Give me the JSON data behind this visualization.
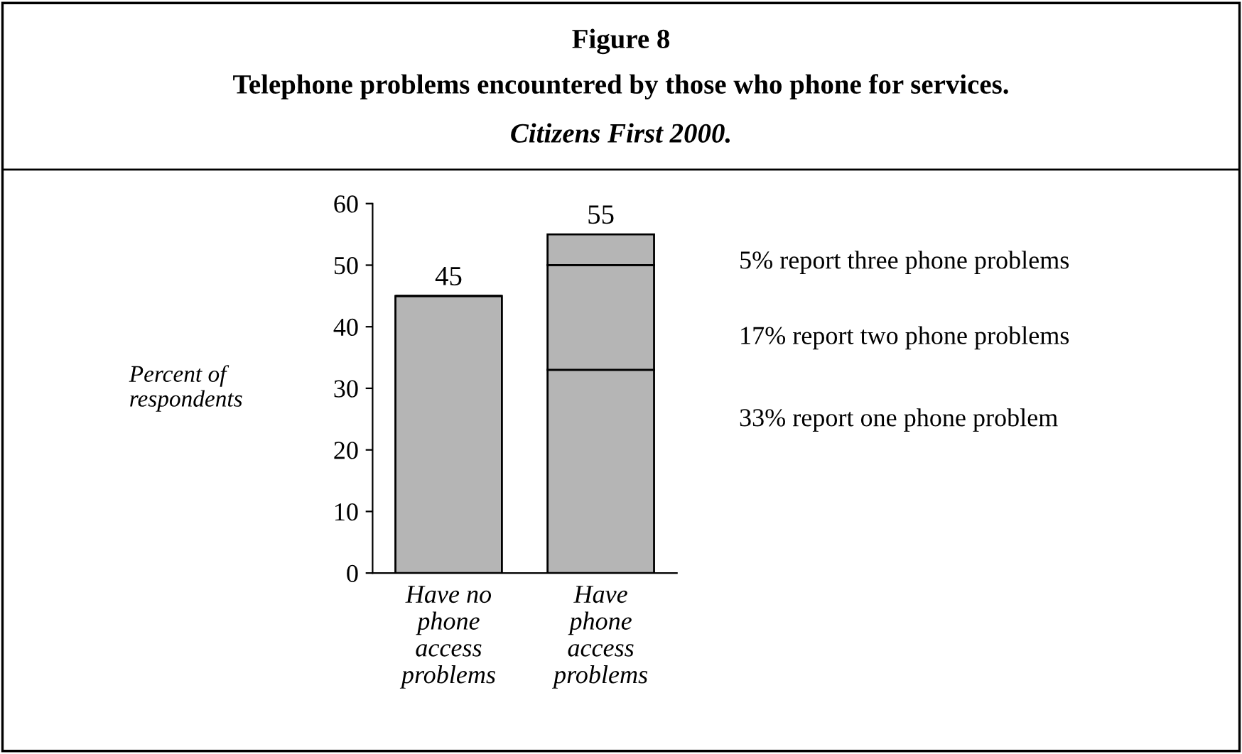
{
  "chart_data": {
    "type": "bar",
    "stacked": true,
    "title": "Figure 8",
    "subtitle": "Telephone problems encountered by those who phone for services.",
    "ylabel": "Percent of\nrespondents",
    "categories": [
      "Have no\nphone\naccess\nproblems",
      "Have\nphone\naccess\nproblems"
    ],
    "series": [
      {
        "color": "#b5b5b5",
        "values": [
          45,
          33
        ]
      },
      {
        "color": "#b5b5b5",
        "values": [
          null,
          17
        ]
      },
      {
        "color": "#b5b5b5",
        "values": [
          null,
          5
        ]
      }
    ],
    "totals": [
      "45",
      "55"
    ],
    "ylim": [
      0,
      60
    ],
    "yticks": [
      0,
      10,
      20,
      30,
      40,
      50,
      60
    ],
    "grid": false,
    "legend": false,
    "annotations": [
      "Citizens First 2000.",
      "5% report three phone problems",
      "17% report two phone problems",
      "33% report one phone problem"
    ]
  }
}
